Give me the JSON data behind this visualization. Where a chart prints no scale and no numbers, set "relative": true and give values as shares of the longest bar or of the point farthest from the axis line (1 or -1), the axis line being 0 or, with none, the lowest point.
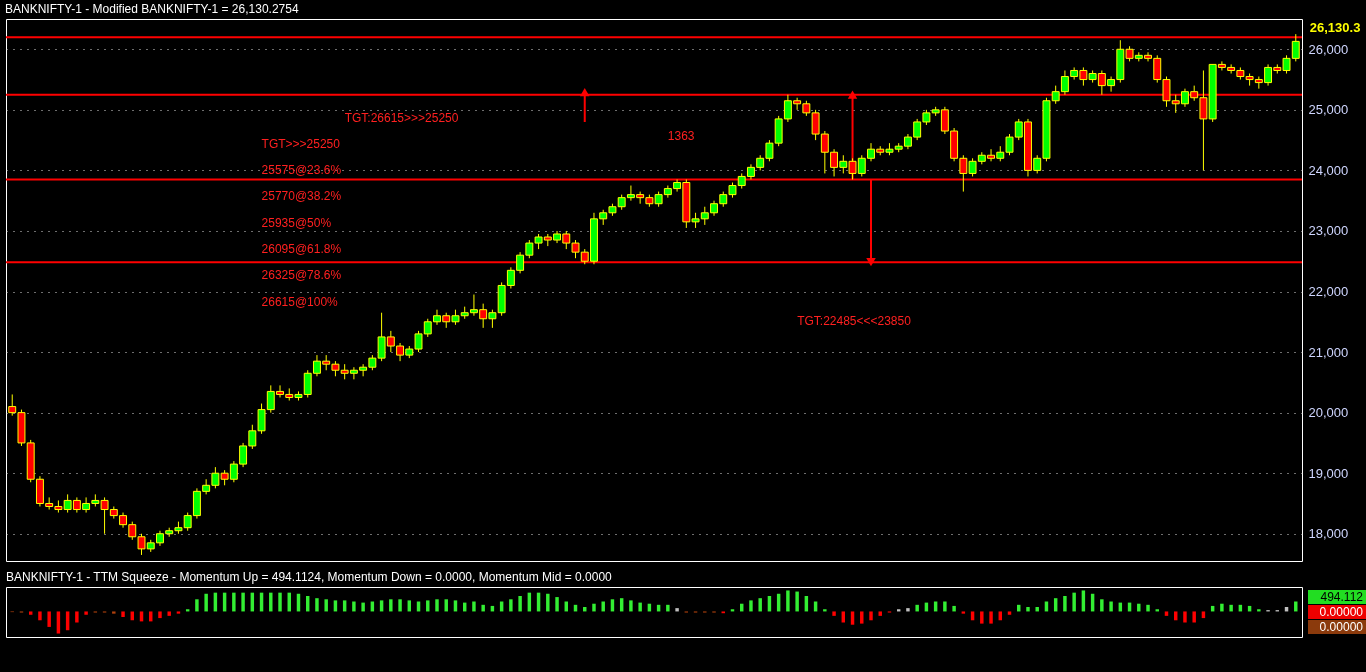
{
  "chart_data": [
    {
      "type": "candlestick",
      "title": "BANKNIFTY-1 - Modified BANKNIFTY-1 = 26,130.2754",
      "categories": [
        null,
        null,
        null,
        null,
        null,
        null,
        null,
        null,
        null,
        null,
        null,
        null,
        null,
        null,
        null,
        null,
        null,
        null,
        null,
        null,
        null,
        null,
        null,
        null,
        null,
        null,
        null,
        null,
        null,
        null,
        null,
        null,
        null,
        null,
        null,
        null,
        null,
        null,
        null,
        null,
        null,
        null,
        null,
        null,
        null,
        null,
        null,
        null,
        null,
        null,
        null,
        null,
        null,
        null,
        null,
        null,
        null,
        null,
        null,
        null,
        null,
        null,
        null,
        null,
        null,
        null,
        null,
        null,
        null,
        null,
        null,
        null,
        null,
        null,
        null,
        null,
        null,
        null,
        null,
        null,
        null,
        null,
        null,
        null,
        null,
        null,
        null,
        null,
        null,
        null,
        null,
        null,
        null,
        null,
        null,
        null,
        null,
        null,
        null,
        null,
        null,
        null,
        null,
        null,
        null,
        null,
        null,
        null,
        null,
        null,
        null,
        null,
        null,
        null,
        null,
        null,
        null,
        null,
        null,
        null,
        null,
        null,
        null,
        null,
        null,
        null,
        null,
        null,
        null,
        null,
        null,
        null,
        null,
        null,
        null,
        null,
        null,
        null,
        null,
        null
      ],
      "ohlc": [
        [
          20100,
          20300,
          19950,
          20000
        ],
        [
          20000,
          20050,
          19450,
          19500
        ],
        [
          19500,
          19550,
          18850,
          18900
        ],
        [
          18900,
          18950,
          18450,
          18500
        ],
        [
          18500,
          18600,
          18400,
          18450
        ],
        [
          18450,
          18550,
          18350,
          18400
        ],
        [
          18400,
          18650,
          18350,
          18550
        ],
        [
          18550,
          18600,
          18350,
          18400
        ],
        [
          18400,
          18600,
          18350,
          18500
        ],
        [
          18500,
          18650,
          18450,
          18550
        ],
        [
          18550,
          18600,
          18000,
          18400
        ],
        [
          18400,
          18450,
          18250,
          18300
        ],
        [
          18300,
          18350,
          18100,
          18150
        ],
        [
          18150,
          18200,
          17900,
          17950
        ],
        [
          17950,
          18000,
          17650,
          17750
        ],
        [
          17750,
          17900,
          17700,
          17850
        ],
        [
          17850,
          18050,
          17800,
          18000
        ],
        [
          18000,
          18100,
          17950,
          18050
        ],
        [
          18050,
          18200,
          18000,
          18100
        ],
        [
          18100,
          18350,
          18050,
          18300
        ],
        [
          18300,
          18750,
          18250,
          18700
        ],
        [
          18700,
          18900,
          18650,
          18800
        ],
        [
          18800,
          19100,
          18750,
          19000
        ],
        [
          19000,
          19050,
          18800,
          18900
        ],
        [
          18900,
          19200,
          18850,
          19150
        ],
        [
          19150,
          19500,
          19100,
          19450
        ],
        [
          19450,
          19800,
          19400,
          19700
        ],
        [
          19700,
          20150,
          19650,
          20050
        ],
        [
          20050,
          20450,
          20000,
          20350
        ],
        [
          20350,
          20450,
          20250,
          20300
        ],
        [
          20300,
          20400,
          20200,
          20250
        ],
        [
          20250,
          20350,
          20200,
          20300
        ],
        [
          20300,
          20700,
          20250,
          20650
        ],
        [
          20650,
          20950,
          20600,
          20850
        ],
        [
          20850,
          20950,
          20700,
          20800
        ],
        [
          20800,
          20850,
          20600,
          20700
        ],
        [
          20700,
          20800,
          20550,
          20650
        ],
        [
          20650,
          20750,
          20550,
          20700
        ],
        [
          20700,
          20800,
          20600,
          20750
        ],
        [
          20750,
          20950,
          20700,
          20900
        ],
        [
          20900,
          21650,
          20850,
          21250
        ],
        [
          21250,
          21350,
          21000,
          21100
        ],
        [
          21100,
          21150,
          20850,
          20950
        ],
        [
          20950,
          21100,
          20900,
          21050
        ],
        [
          21050,
          21350,
          21000,
          21300
        ],
        [
          21300,
          21550,
          21250,
          21500
        ],
        [
          21500,
          21700,
          21450,
          21600
        ],
        [
          21600,
          21650,
          21400,
          21500
        ],
        [
          21500,
          21700,
          21450,
          21600
        ],
        [
          21600,
          21750,
          21550,
          21650
        ],
        [
          21650,
          21950,
          21600,
          21700
        ],
        [
          21700,
          21800,
          21400,
          21550
        ],
        [
          21550,
          21700,
          21400,
          21650
        ],
        [
          21650,
          22150,
          21600,
          22100
        ],
        [
          22100,
          22400,
          22050,
          22350
        ],
        [
          22350,
          22650,
          22300,
          22600
        ],
        [
          22600,
          22850,
          22550,
          22800
        ],
        [
          22800,
          22950,
          22700,
          22900
        ],
        [
          22900,
          22950,
          22750,
          22850
        ],
        [
          22850,
          23000,
          22800,
          22950
        ],
        [
          22950,
          23000,
          22700,
          22800
        ],
        [
          22800,
          22850,
          22550,
          22650
        ],
        [
          22650,
          22700,
          22450,
          22500
        ],
        [
          22500,
          23300,
          22450,
          23200
        ],
        [
          23200,
          23350,
          23100,
          23300
        ],
        [
          23300,
          23450,
          23250,
          23400
        ],
        [
          23400,
          23600,
          23350,
          23550
        ],
        [
          23550,
          23750,
          23500,
          23600
        ],
        [
          23600,
          23650,
          23450,
          23550
        ],
        [
          23550,
          23600,
          23400,
          23450
        ],
        [
          23450,
          23650,
          23400,
          23600
        ],
        [
          23600,
          23750,
          23550,
          23700
        ],
        [
          23700,
          23850,
          23650,
          23800
        ],
        [
          23800,
          23850,
          23050,
          23150
        ],
        [
          23150,
          23300,
          23050,
          23200
        ],
        [
          23200,
          23400,
          23100,
          23300
        ],
        [
          23300,
          23500,
          23250,
          23450
        ],
        [
          23450,
          23650,
          23400,
          23600
        ],
        [
          23600,
          23800,
          23550,
          23750
        ],
        [
          23750,
          23950,
          23700,
          23900
        ],
        [
          23900,
          24100,
          23850,
          24050
        ],
        [
          24050,
          24250,
          24000,
          24200
        ],
        [
          24200,
          24500,
          24150,
          24450
        ],
        [
          24450,
          24900,
          24400,
          24850
        ],
        [
          24850,
          25250,
          24800,
          25150
        ],
        [
          25150,
          25200,
          25000,
          25100
        ],
        [
          25100,
          25150,
          24900,
          24950
        ],
        [
          24950,
          25000,
          24500,
          24600
        ],
        [
          24600,
          24650,
          23950,
          24300
        ],
        [
          24300,
          24350,
          23900,
          24050
        ],
        [
          24050,
          24250,
          23950,
          24150
        ],
        [
          24150,
          24200,
          23850,
          23950
        ],
        [
          23950,
          24250,
          23900,
          24200
        ],
        [
          24200,
          24450,
          24150,
          24350
        ],
        [
          24350,
          24400,
          24250,
          24300
        ],
        [
          24300,
          24450,
          24250,
          24350
        ],
        [
          24350,
          24450,
          24300,
          24400
        ],
        [
          24400,
          24600,
          24350,
          24550
        ],
        [
          24550,
          24850,
          24500,
          24800
        ],
        [
          24800,
          25000,
          24750,
          24950
        ],
        [
          24950,
          25050,
          24900,
          25000
        ],
        [
          25000,
          25050,
          24600,
          24650
        ],
        [
          24650,
          24700,
          24150,
          24200
        ],
        [
          24200,
          24250,
          23650,
          23950
        ],
        [
          23950,
          24200,
          23900,
          24150
        ],
        [
          24150,
          24300,
          24100,
          24250
        ],
        [
          24250,
          24350,
          24150,
          24200
        ],
        [
          24200,
          24400,
          24150,
          24300
        ],
        [
          24300,
          24600,
          24250,
          24550
        ],
        [
          24550,
          24850,
          24500,
          24800
        ],
        [
          24800,
          24850,
          23900,
          24000
        ],
        [
          24000,
          24250,
          23950,
          24200
        ],
        [
          24200,
          25200,
          24150,
          25150
        ],
        [
          25150,
          25400,
          25100,
          25300
        ],
        [
          25300,
          25650,
          25250,
          25550
        ],
        [
          25550,
          25700,
          25500,
          25650
        ],
        [
          25650,
          25700,
          25400,
          25500
        ],
        [
          25500,
          25650,
          25450,
          25600
        ],
        [
          25600,
          25650,
          25250,
          25400
        ],
        [
          25400,
          25550,
          25300,
          25500
        ],
        [
          25500,
          26150,
          25450,
          26000
        ],
        [
          26000,
          26050,
          25800,
          25850
        ],
        [
          25850,
          25950,
          25800,
          25900
        ],
        [
          25900,
          25950,
          25800,
          25850
        ],
        [
          25850,
          25900,
          25450,
          25500
        ],
        [
          25500,
          25550,
          25050,
          25150
        ],
        [
          25150,
          25250,
          24950,
          25100
        ],
        [
          25100,
          25350,
          25050,
          25300
        ],
        [
          25300,
          25400,
          25150,
          25200
        ],
        [
          25200,
          25650,
          24000,
          24850
        ],
        [
          24850,
          25750,
          24800,
          25750
        ],
        [
          25750,
          25800,
          25650,
          25700
        ],
        [
          25700,
          25750,
          25600,
          25650
        ],
        [
          25650,
          25700,
          25500,
          25550
        ],
        [
          25550,
          25600,
          25400,
          25500
        ],
        [
          25500,
          25550,
          25350,
          25450
        ],
        [
          25450,
          25750,
          25400,
          25700
        ],
        [
          25700,
          25750,
          25600,
          25650
        ],
        [
          25650,
          25900,
          25600,
          25850
        ],
        [
          25850,
          26250,
          25800,
          26130.3
        ]
      ],
      "colors": [
        "#ff0000",
        "#ff0000",
        "#ff0000",
        "#ff0000",
        "#ff0000",
        "#ff0000",
        "#00ff00",
        "#ff0000",
        "#00ff00",
        "#00ff00",
        "#ff0000",
        "#ff0000",
        "#ff0000",
        "#ff0000",
        "#ff0000",
        "#00ff00",
        "#00ff00",
        "#00ff00",
        "#00ff00",
        "#00ff00",
        "#00ff00",
        "#00ff00",
        "#00ff00",
        "#ff0000",
        "#00ff00",
        "#00ff00",
        "#00ff00",
        "#00ff00",
        "#00ff00",
        "#ff0000",
        "#ff0000",
        "#00ff00",
        "#00ff00",
        "#00ff00",
        "#ff0000",
        "#ff0000",
        "#ff0000",
        "#00ff00",
        "#00ff00",
        "#00ff00",
        "#00ff00",
        "#ff0000",
        "#ff0000",
        "#00ff00",
        "#00ff00",
        "#00ff00",
        "#00ff00",
        "#ff0000",
        "#00ff00",
        "#00ff00",
        "#00ff00",
        "#ff0000",
        "#00ff00",
        "#00ff00",
        "#00ff00",
        "#00ff00",
        "#00ff00",
        "#00ff00",
        "#ff0000",
        "#00ff00",
        "#ff0000",
        "#ff0000",
        "#ff0000",
        "#00ff00",
        "#00ff00",
        "#00ff00",
        "#00ff00",
        "#00ff00",
        "#ff0000",
        "#ff0000",
        "#00ff00",
        "#00ff00",
        "#00ff00",
        "#ff0000",
        "#00ff00",
        "#00ff00",
        "#00ff00",
        "#00ff00",
        "#00ff00",
        "#00ff00",
        "#00ff00",
        "#00ff00",
        "#00ff00",
        "#00ff00",
        "#00ff00",
        "#ff0000",
        "#ff0000",
        "#ff0000",
        "#ff0000",
        "#ff0000",
        "#00ff00",
        "#ff0000",
        "#00ff00",
        "#00ff00",
        "#ff0000",
        "#00ff00",
        "#00ff00",
        "#00ff00",
        "#00ff00",
        "#00ff00",
        "#00ff00",
        "#ff0000",
        "#ff0000",
        "#ff0000",
        "#00ff00",
        "#00ff00",
        "#ff0000",
        "#00ff00",
        "#00ff00",
        "#00ff00",
        "#ff0000",
        "#00ff00",
        "#00ff00",
        "#00ff00",
        "#00ff00",
        "#00ff00",
        "#ff0000",
        "#00ff00",
        "#ff0000",
        "#00ff00",
        "#00ff00",
        "#ff0000",
        "#00ff00",
        "#ff0000",
        "#ff0000",
        "#ff0000",
        "#ff0000",
        "#00ff00",
        "#ff0000",
        "#ff0000",
        "#00ff00",
        "#ff0000",
        "#ff0000",
        "#ff0000",
        "#ff0000",
        "#ff0000",
        "#00ff00",
        "#ff0000",
        "#00ff00",
        "#00ff00"
      ],
      "ylim": [
        17550,
        26500
      ],
      "yticks": [
        {
          "value": 18000,
          "label": "18,000"
        },
        {
          "value": 19000,
          "label": "19,000"
        },
        {
          "value": 20000,
          "label": "20,000"
        },
        {
          "value": 21000,
          "label": "21,000"
        },
        {
          "value": 22000,
          "label": "22,000"
        },
        {
          "value": 23000,
          "label": "23,000"
        },
        {
          "value": 24000,
          "label": "24,000"
        },
        {
          "value": 25000,
          "label": "25,000"
        },
        {
          "value": 26000,
          "label": "26,000"
        }
      ],
      "grid": "y",
      "ref_lines": [
        {
          "axis": "y",
          "value": 26200,
          "color": "#ff0000"
        },
        {
          "axis": "y",
          "value": 25250,
          "color": "#ff0000"
        },
        {
          "axis": "y",
          "value": 23850,
          "color": "#ff0000"
        },
        {
          "axis": "y",
          "value": 22485,
          "color": "#ff0000"
        }
      ],
      "annotations": [
        "TGT:26615>>>25250",
        "1363",
        "TGT>>>25250",
        "25575@23.6%",
        "25770@38.2%",
        "25935@50%",
        "26095@61.8%",
        "26325@78.6%",
        "26615@100%",
        "TGT:22485<<<23850",
        "26,130.3"
      ]
    },
    {
      "type": "bar",
      "title": "BANKNIFTY-1 - TTM Squeeze - Momentum Up = 494.1124, Momentum Down = 0.0000, Momentum Mid = 0.0000",
      "categories": [
        null,
        null,
        null,
        null,
        null,
        null,
        null,
        null,
        null,
        null,
        null,
        null,
        null,
        null,
        null,
        null,
        null,
        null,
        null,
        null,
        null,
        null,
        null,
        null,
        null,
        null,
        null,
        null,
        null,
        null,
        null,
        null,
        null,
        null,
        null,
        null,
        null,
        null,
        null,
        null,
        null,
        null,
        null,
        null,
        null,
        null,
        null,
        null,
        null,
        null,
        null,
        null,
        null,
        null,
        null,
        null,
        null,
        null,
        null,
        null,
        null,
        null,
        null,
        null,
        null,
        null,
        null,
        null,
        null,
        null,
        null,
        null,
        null,
        null,
        null,
        null,
        null,
        null,
        null,
        null,
        null,
        null,
        null,
        null,
        null,
        null,
        null,
        null,
        null,
        null,
        null,
        null,
        null,
        null,
        null,
        null,
        null,
        null,
        null,
        null,
        null,
        null,
        null,
        null,
        null,
        null,
        null,
        null,
        null,
        null,
        null,
        null,
        null,
        null,
        null,
        null,
        null,
        null,
        null,
        null,
        null,
        null,
        null,
        null,
        null,
        null,
        null,
        null,
        null,
        null,
        null,
        null,
        null,
        null,
        null,
        null,
        null,
        null,
        null,
        null
      ],
      "relative": true,
      "values": [
        -0.03,
        -0.05,
        -0.15,
        -0.4,
        -0.7,
        -1,
        -0.85,
        -0.5,
        -0.15,
        -0.05,
        -0.05,
        -0.1,
        -0.25,
        -0.4,
        -0.45,
        -0.45,
        -0.3,
        -0.2,
        -0.1,
        0.1,
        0.55,
        0.8,
        0.85,
        0.85,
        0.85,
        0.85,
        0.85,
        0.85,
        0.85,
        0.85,
        0.85,
        0.8,
        0.7,
        0.6,
        0.55,
        0.5,
        0.5,
        0.45,
        0.4,
        0.45,
        0.5,
        0.55,
        0.55,
        0.5,
        0.45,
        0.5,
        0.55,
        0.55,
        0.5,
        0.4,
        0.45,
        0.3,
        0.25,
        0.45,
        0.55,
        0.7,
        0.85,
        0.85,
        0.8,
        0.65,
        0.45,
        0.3,
        0.2,
        0.35,
        0.45,
        0.55,
        0.6,
        0.5,
        0.4,
        0.35,
        0.3,
        0.3,
        0.15,
        -0.05,
        -0.05,
        -0.05,
        -0.05,
        -0.08,
        0.1,
        0.35,
        0.5,
        0.6,
        0.7,
        0.8,
        0.95,
        0.9,
        0.7,
        0.45,
        0.1,
        -0.2,
        -0.5,
        -0.6,
        -0.55,
        -0.4,
        -0.2,
        -0.05,
        0.1,
        0.15,
        0.3,
        0.4,
        0.45,
        0.45,
        0.25,
        -0.1,
        -0.4,
        -0.55,
        -0.55,
        -0.4,
        -0.15,
        0.3,
        0.2,
        0.2,
        0.45,
        0.6,
        0.7,
        0.85,
        0.95,
        0.8,
        0.55,
        0.45,
        0.4,
        0.4,
        0.35,
        0.3,
        0.1,
        -0.2,
        -0.4,
        -0.5,
        -0.5,
        -0.3,
        0.25,
        0.35,
        0.3,
        0.3,
        0.25,
        0.1,
        0.06,
        0.06,
        0.2,
        0.45
      ],
      "colors": [
        "#b0400c",
        "#b0400c",
        "#ff0000",
        "#ff0000",
        "#ff0000",
        "#ff0000",
        "#ff0000",
        "#ff0000",
        "#ff0000",
        "#b0400c",
        "#b0400c",
        "#b0400c",
        "#ff0000",
        "#ff0000",
        "#ff0000",
        "#ff0000",
        "#ff0000",
        "#ff0000",
        "#ff0000",
        "#33ee33",
        "#33ee33",
        "#33ee33",
        "#33ee33",
        "#33ee33",
        "#33ee33",
        "#33ee33",
        "#33ee33",
        "#33ee33",
        "#33ee33",
        "#33ee33",
        "#33ee33",
        "#33ee33",
        "#33ee33",
        "#33ee33",
        "#33ee33",
        "#33ee33",
        "#33ee33",
        "#33ee33",
        "#33ee33",
        "#33ee33",
        "#33ee33",
        "#33ee33",
        "#33ee33",
        "#33ee33",
        "#33ee33",
        "#33ee33",
        "#33ee33",
        "#33ee33",
        "#33ee33",
        "#33ee33",
        "#33ee33",
        "#33ee33",
        "#33ee33",
        "#33ee33",
        "#33ee33",
        "#33ee33",
        "#33ee33",
        "#33ee33",
        "#33ee33",
        "#33ee33",
        "#33ee33",
        "#33ee33",
        "#33ee33",
        "#33ee33",
        "#33ee33",
        "#33ee33",
        "#33ee33",
        "#33ee33",
        "#33ee33",
        "#33ee33",
        "#33ee33",
        "#33ee33",
        "#c0c0c0",
        "#b0400c",
        "#b0400c",
        "#b0400c",
        "#b0400c",
        "#ff0000",
        "#33ee33",
        "#33ee33",
        "#33ee33",
        "#33ee33",
        "#33ee33",
        "#33ee33",
        "#33ee33",
        "#33ee33",
        "#33ee33",
        "#33ee33",
        "#33ee33",
        "#ff0000",
        "#ff0000",
        "#ff0000",
        "#ff0000",
        "#ff0000",
        "#ff0000",
        "#ff0000",
        "#c0c0c0",
        "#c0c0c0",
        "#33ee33",
        "#33ee33",
        "#33ee33",
        "#33ee33",
        "#33ee33",
        "#ff0000",
        "#ff0000",
        "#ff0000",
        "#ff0000",
        "#ff0000",
        "#ff0000",
        "#33ee33",
        "#33ee33",
        "#33ee33",
        "#33ee33",
        "#33ee33",
        "#33ee33",
        "#33ee33",
        "#33ee33",
        "#33ee33",
        "#33ee33",
        "#33ee33",
        "#33ee33",
        "#33ee33",
        "#33ee33",
        "#33ee33",
        "#33ee33",
        "#ff0000",
        "#ff0000",
        "#ff0000",
        "#ff0000",
        "#ff0000",
        "#33ee33",
        "#33ee33",
        "#33ee33",
        "#33ee33",
        "#33ee33",
        "#33ee33",
        "#c0c0c0",
        "#c0c0c0",
        "#c0c0c0",
        "#33ee33"
      ],
      "annotations": [
        "494.112",
        "0.00000",
        "0.00000"
      ]
    }
  ]
}
